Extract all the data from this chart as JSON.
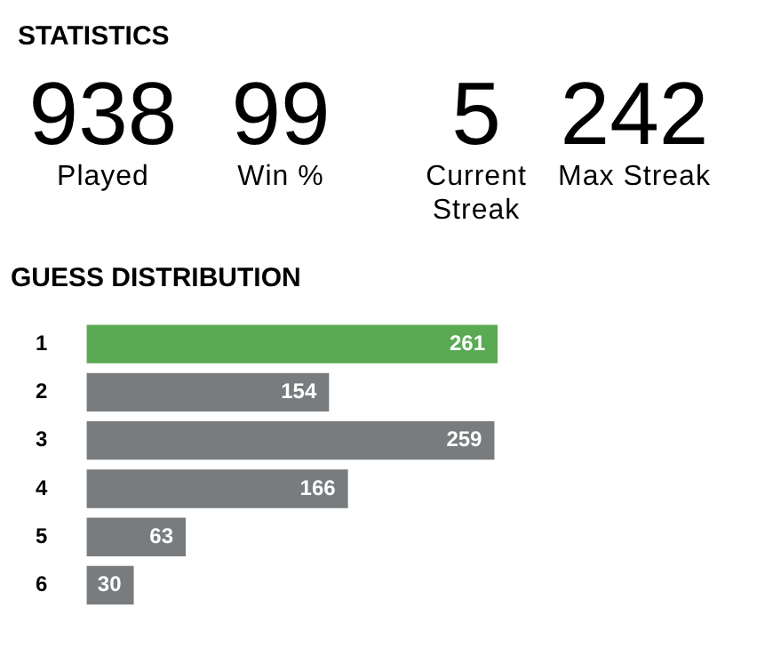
{
  "chart_data": [
    {
      "type": "other",
      "title": "STATISTICS",
      "annotations": [
        "938",
        "Played",
        "99",
        "Win %",
        "5",
        "Current Streak",
        "242",
        "Max Streak"
      ]
    },
    {
      "type": "bar",
      "title": "GUESS DISTRIBUTION",
      "orientation": "horizontal",
      "categories": [
        "1",
        "2",
        "3",
        "4",
        "5",
        "6"
      ],
      "values": [
        261,
        154,
        259,
        166,
        63,
        30
      ],
      "colors": [
        "#5aaa54",
        "#787c7e",
        "#787c7e",
        "#787c7e",
        "#787c7e",
        "#787c7e"
      ],
      "data_labels": true,
      "tick_labels": "y",
      "grid": false,
      "legend": false
    }
  ]
}
